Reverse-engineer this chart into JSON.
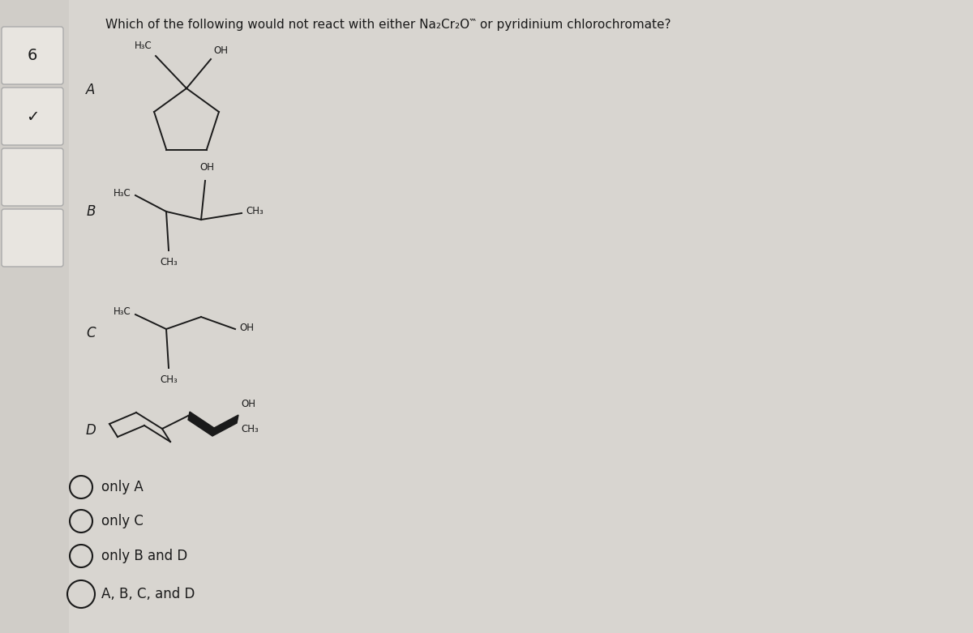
{
  "bg_color": "#d8d5d0",
  "page_bg": "#e8e5e0",
  "question": "Which of the following would not react with either Na₂Cr₂O‷ or pyridinium chlorochromate?",
  "question_fontsize": 11,
  "side_number": "6",
  "choices": [
    "only A",
    "only C",
    "only B and D",
    "A, B, C, and D"
  ],
  "choice_fontsize": 12,
  "text_color": "#1a1a1a",
  "line_color": "#1a1a1a",
  "line_width": 1.4,
  "fs_chem": 8.5
}
